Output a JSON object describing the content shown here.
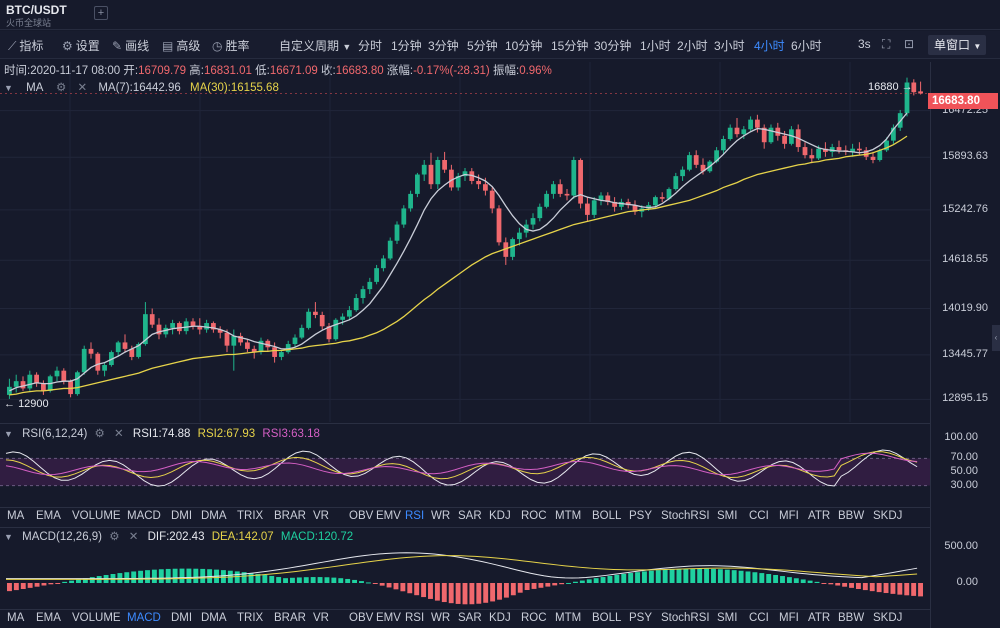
{
  "header": {
    "pair": "BTC/USDT",
    "subtitle": "火币全球站",
    "add_icon": "plus-icon"
  },
  "toolbar": {
    "tools": [
      {
        "label": "指标",
        "icon": "chart-line-icon"
      },
      {
        "label": "设置",
        "icon": "gear-icon"
      },
      {
        "label": "画线",
        "icon": "pen-icon"
      },
      {
        "label": "高级",
        "icon": "table-icon"
      },
      {
        "label": "胜率",
        "icon": "clock-icon"
      }
    ],
    "custom_period": "自定义周期",
    "periods": [
      "分时",
      "1分钟",
      "3分钟",
      "5分钟",
      "10分钟",
      "15分钟",
      "30分钟",
      "1小时",
      "2小时",
      "3小时",
      "4小时",
      "6小时"
    ],
    "active_period": "4小时",
    "refresh": "3s",
    "window_mode": "单窗口"
  },
  "ohlc": {
    "time_label": "时间:",
    "time": "2020-11-17 08:00",
    "open_label": "开:",
    "open": "16709.79",
    "high_label": "高:",
    "high": "16831.01",
    "low_label": "低:",
    "low": "16671.09",
    "close_label": "收:",
    "close": "16683.80",
    "change_label": "涨幅:",
    "change": "-0.17%(-28.31)",
    "amplitude_label": "振幅:",
    "amplitude": "0.96%"
  },
  "main_indicator": {
    "name": "MA",
    "ma7": "MA(7):16442.96",
    "ma30": "MA(30):16155.68",
    "ma7_color": "#c9cdd8",
    "ma30_color": "#e6d34a"
  },
  "price_axis": [
    "16472.25",
    "15893.63",
    "15242.76",
    "14618.55",
    "14019.90",
    "13445.77",
    "12895.15"
  ],
  "last_price": "16683.80",
  "high_marker": "16880",
  "low_marker": "12900",
  "rsi": {
    "name": "RSI(6,12,24)",
    "rsi1": "RSI1:74.88",
    "rsi2": "RSI2:67.93",
    "rsi3": "RSI3:63.18",
    "axis": [
      "100.00",
      "70.00",
      "50.00",
      "30.00"
    ]
  },
  "indicator_tabs": [
    "MA",
    "EMA",
    "VOLUME",
    "MACD",
    "DMI",
    "DMA",
    "TRIX",
    "BRAR",
    "VR",
    "OBV",
    "EMV",
    "RSI",
    "WR",
    "SAR",
    "KDJ",
    "ROC",
    "MTM",
    "BOLL",
    "PSY",
    "StochRSI",
    "SMI",
    "CCI",
    "MFI",
    "ATR",
    "BBW",
    "SKDJ"
  ],
  "indicator_tabs_active_1": "RSI",
  "indicator_tabs_active_2": "MACD",
  "macd": {
    "name": "MACD(12,26,9)",
    "dif": "DIF:202.43",
    "dea": "DEA:142.07",
    "macd": "MACD:120.72",
    "axis": [
      "500.00",
      "0.00"
    ]
  },
  "colors": {
    "up": "#1fb58c",
    "down": "#f0686d",
    "accent": "#3d8bff",
    "bg": "#161a2b"
  },
  "chart_data": {
    "type": "candlestick",
    "title": "",
    "ylim": [
      12800,
      16950
    ],
    "candles": [
      [
        12950,
        13150,
        12900,
        13050
      ],
      [
        13050,
        13200,
        12980,
        13120
      ],
      [
        13120,
        13180,
        13000,
        13030
      ],
      [
        13030,
        13250,
        13000,
        13200
      ],
      [
        13200,
        13230,
        13050,
        13090
      ],
      [
        13090,
        13130,
        12950,
        13000
      ],
      [
        13000,
        13200,
        12980,
        13180
      ],
      [
        13180,
        13300,
        13120,
        13250
      ],
      [
        13250,
        13280,
        13080,
        13120
      ],
      [
        13120,
        13140,
        12920,
        12960
      ],
      [
        12960,
        13250,
        12940,
        13230
      ],
      [
        13230,
        13560,
        13200,
        13520
      ],
      [
        13520,
        13600,
        13400,
        13460
      ],
      [
        13460,
        13480,
        13200,
        13250
      ],
      [
        13250,
        13350,
        13180,
        13320
      ],
      [
        13320,
        13500,
        13300,
        13480
      ],
      [
        13480,
        13620,
        13430,
        13600
      ],
      [
        13600,
        13700,
        13480,
        13520
      ],
      [
        13520,
        13560,
        13380,
        13420
      ],
      [
        13420,
        13600,
        13400,
        13580
      ],
      [
        13580,
        14100,
        13560,
        13950
      ],
      [
        13950,
        14020,
        13780,
        13820
      ],
      [
        13820,
        13900,
        13640,
        13700
      ],
      [
        13700,
        13820,
        13660,
        13780
      ],
      [
        13780,
        13880,
        13700,
        13840
      ],
      [
        13840,
        13860,
        13700,
        13740
      ],
      [
        13740,
        13900,
        13700,
        13860
      ],
      [
        13860,
        13900,
        13760,
        13800
      ],
      [
        13800,
        13900,
        13700,
        13760
      ],
      [
        13760,
        13880,
        13720,
        13840
      ],
      [
        13840,
        13860,
        13720,
        13760
      ],
      [
        13760,
        13800,
        13650,
        13720
      ],
      [
        13720,
        13760,
        13480,
        13560
      ],
      [
        13560,
        13760,
        13250,
        13680
      ],
      [
        13680,
        13720,
        13560,
        13600
      ],
      [
        13600,
        13640,
        13480,
        13520
      ],
      [
        13520,
        13560,
        13400,
        13480
      ],
      [
        13480,
        13660,
        13450,
        13620
      ],
      [
        13620,
        13640,
        13500,
        13540
      ],
      [
        13540,
        13600,
        13350,
        13420
      ],
      [
        13420,
        13500,
        13380,
        13480
      ],
      [
        13480,
        13620,
        13460,
        13580
      ],
      [
        13580,
        13700,
        13540,
        13660
      ],
      [
        13660,
        13820,
        13640,
        13780
      ],
      [
        13780,
        14020,
        13760,
        13980
      ],
      [
        13980,
        14100,
        13900,
        13940
      ],
      [
        13940,
        13980,
        13760,
        13800
      ],
      [
        13800,
        13840,
        13600,
        13640
      ],
      [
        13640,
        13900,
        13620,
        13880
      ],
      [
        13880,
        13960,
        13820,
        13920
      ],
      [
        13920,
        14050,
        13880,
        14000
      ],
      [
        14000,
        14200,
        13980,
        14150
      ],
      [
        14150,
        14300,
        14080,
        14260
      ],
      [
        14260,
        14400,
        14200,
        14350
      ],
      [
        14350,
        14560,
        14320,
        14520
      ],
      [
        14520,
        14680,
        14480,
        14640
      ],
      [
        14640,
        14900,
        14620,
        14860
      ],
      [
        14860,
        15100,
        14820,
        15060
      ],
      [
        15060,
        15300,
        15020,
        15260
      ],
      [
        15260,
        15480,
        15220,
        15440
      ],
      [
        15440,
        15700,
        15400,
        15680
      ],
      [
        15680,
        15860,
        15600,
        15800
      ],
      [
        15800,
        15950,
        15500,
        15560
      ],
      [
        15560,
        15900,
        15500,
        15860
      ],
      [
        15860,
        15960,
        15700,
        15740
      ],
      [
        15740,
        15800,
        15480,
        15520
      ],
      [
        15520,
        15700,
        15480,
        15660
      ],
      [
        15660,
        15760,
        15600,
        15720
      ],
      [
        15720,
        15760,
        15560,
        15600
      ],
      [
        15600,
        15680,
        15500,
        15560
      ],
      [
        15560,
        15640,
        15420,
        15480
      ],
      [
        15480,
        15520,
        15200,
        15260
      ],
      [
        15260,
        15300,
        14800,
        14840
      ],
      [
        14840,
        14900,
        14560,
        14660
      ],
      [
        14660,
        14900,
        14620,
        14880
      ],
      [
        14880,
        15020,
        14800,
        14960
      ],
      [
        14960,
        15120,
        14900,
        15060
      ],
      [
        15060,
        15200,
        15000,
        15140
      ],
      [
        15140,
        15320,
        15100,
        15280
      ],
      [
        15280,
        15480,
        15260,
        15440
      ],
      [
        15440,
        15600,
        15380,
        15560
      ],
      [
        15560,
        15620,
        15400,
        15440
      ],
      [
        15440,
        15500,
        15360,
        15420
      ],
      [
        15420,
        15900,
        15380,
        15860
      ],
      [
        15860,
        15880,
        15260,
        15320
      ],
      [
        15320,
        15400,
        15100,
        15180
      ],
      [
        15180,
        15400,
        15140,
        15360
      ],
      [
        15360,
        15460,
        15300,
        15420
      ],
      [
        15420,
        15460,
        15300,
        15340
      ],
      [
        15340,
        15400,
        15220,
        15280
      ],
      [
        15280,
        15380,
        15240,
        15340
      ],
      [
        15340,
        15380,
        15260,
        15300
      ],
      [
        15300,
        15360,
        15180,
        15220
      ],
      [
        15220,
        15300,
        15150,
        15260
      ],
      [
        15260,
        15340,
        15230,
        15300
      ],
      [
        15300,
        15420,
        15280,
        15400
      ],
      [
        15400,
        15460,
        15340,
        15380
      ],
      [
        15380,
        15520,
        15360,
        15500
      ],
      [
        15500,
        15700,
        15480,
        15660
      ],
      [
        15660,
        15780,
        15600,
        15740
      ],
      [
        15740,
        15960,
        15720,
        15920
      ],
      [
        15920,
        15980,
        15760,
        15800
      ],
      [
        15800,
        15880,
        15680,
        15720
      ],
      [
        15720,
        15860,
        15700,
        15840
      ],
      [
        15840,
        16020,
        15820,
        15980
      ],
      [
        15980,
        16160,
        15940,
        16120
      ],
      [
        16120,
        16300,
        16100,
        16260
      ],
      [
        16260,
        16380,
        16140,
        16180
      ],
      [
        16180,
        16280,
        16120,
        16240
      ],
      [
        16240,
        16400,
        16220,
        16360
      ],
      [
        16360,
        16420,
        16200,
        16260
      ],
      [
        16260,
        16300,
        16000,
        16080
      ],
      [
        16080,
        16300,
        16060,
        16260
      ],
      [
        16260,
        16320,
        16100,
        16160
      ],
      [
        16160,
        16220,
        16000,
        16060
      ],
      [
        16060,
        16280,
        16040,
        16240
      ],
      [
        16240,
        16300,
        15960,
        16020
      ],
      [
        16020,
        16080,
        15880,
        15920
      ],
      [
        15920,
        16000,
        15820,
        15880
      ],
      [
        15880,
        16040,
        15860,
        16000
      ],
      [
        16000,
        16080,
        15900,
        15960
      ],
      [
        15960,
        16060,
        15900,
        16020
      ],
      [
        16020,
        16100,
        15940,
        15980
      ],
      [
        15980,
        16040,
        15920,
        15960
      ],
      [
        15960,
        16060,
        15900,
        16000
      ],
      [
        16000,
        16080,
        15920,
        15980
      ],
      [
        15980,
        16020,
        15860,
        15900
      ],
      [
        15900,
        15960,
        15820,
        15860
      ],
      [
        15860,
        16000,
        15840,
        15980
      ],
      [
        15980,
        16140,
        15960,
        16100
      ],
      [
        16100,
        16300,
        16060,
        16260
      ],
      [
        16260,
        16480,
        16220,
        16440
      ],
      [
        16440,
        16880,
        16400,
        16820
      ],
      [
        16820,
        16860,
        16660,
        16700
      ],
      [
        16709.79,
        16831.01,
        16671.09,
        16683.8
      ]
    ],
    "ma7": [
      13000,
      13040,
      13060,
      13080,
      13100,
      13090,
      13090,
      13110,
      13120,
      13120,
      13150,
      13220,
      13290,
      13330,
      13350,
      13390,
      13430,
      13480,
      13520,
      13560,
      13630,
      13700,
      13730,
      13750,
      13770,
      13780,
      13790,
      13800,
      13800,
      13790,
      13780,
      13760,
      13730,
      13680,
      13660,
      13640,
      13610,
      13590,
      13570,
      13550,
      13520,
      13520,
      13540,
      13580,
      13640,
      13700,
      13750,
      13790,
      13820,
      13850,
      13880,
      13930,
      14000,
      14080,
      14190,
      14300,
      14440,
      14580,
      14730,
      14890,
      15060,
      15240,
      15380,
      15480,
      15550,
      15610,
      15650,
      15680,
      15670,
      15640,
      15600,
      15530,
      15420,
      15290,
      15170,
      15070,
      15000,
      14980,
      15000,
      15060,
      15140,
      15240,
      15320,
      15400,
      15430,
      15400,
      15380,
      15360,
      15350,
      15330,
      15320,
      15310,
      15300,
      15280,
      15270,
      15280,
      15320,
      15380,
      15450,
      15530,
      15600,
      15660,
      15720,
      15780,
      15850,
      15930,
      16020,
      16100,
      16160,
      16210,
      16250,
      16240,
      16220,
      16200,
      16180,
      16160,
      16130,
      16090,
      16050,
      16010,
      15990,
      15980,
      15970,
      15970,
      15960,
      15950,
      15960,
      15990,
      16040,
      16120,
      16240,
      16340,
      16442.96
    ],
    "ma30": [
      12950,
      12960,
      12980,
      12990,
      13000,
      13000,
      13010,
      13020,
      13030,
      13030,
      13040,
      13060,
      13080,
      13100,
      13120,
      13140,
      13160,
      13180,
      13200,
      13220,
      13250,
      13280,
      13300,
      13320,
      13340,
      13360,
      13380,
      13400,
      13410,
      13420,
      13430,
      13440,
      13450,
      13450,
      13460,
      13470,
      13480,
      13490,
      13490,
      13500,
      13500,
      13510,
      13520,
      13530,
      13550,
      13560,
      13570,
      13580,
      13590,
      13610,
      13620,
      13640,
      13660,
      13690,
      13720,
      13760,
      13810,
      13860,
      13920,
      13990,
      14060,
      14130,
      14190,
      14260,
      14320,
      14380,
      14440,
      14500,
      14560,
      14610,
      14660,
      14700,
      14730,
      14760,
      14790,
      14820,
      14850,
      14880,
      14910,
      14940,
      14970,
      15000,
      15030,
      15060,
      15080,
      15100,
      15120,
      15140,
      15160,
      15180,
      15200,
      15220,
      15230,
      15240,
      15250,
      15260,
      15280,
      15300,
      15320,
      15340,
      15360,
      15390,
      15420,
      15450,
      15480,
      15520,
      15550,
      15580,
      15620,
      15650,
      15680,
      15700,
      15720,
      15740,
      15760,
      15780,
      15800,
      15810,
      15830,
      15840,
      15860,
      15870,
      15880,
      15900,
      15910,
      15920,
      15930,
      15950,
      15980,
      16010,
      16050,
      16100,
      16155.68
    ]
  }
}
